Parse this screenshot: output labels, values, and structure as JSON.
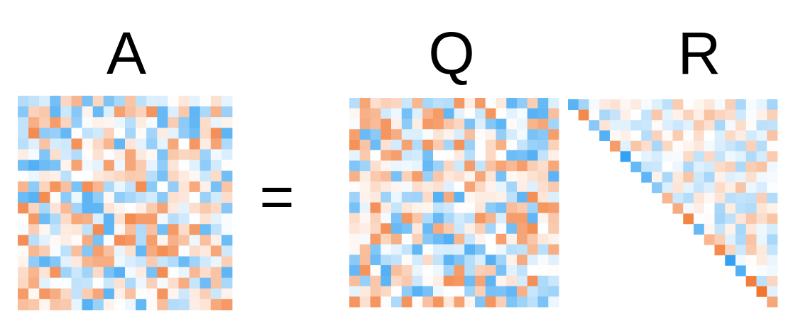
{
  "labels": {
    "a": "A",
    "equals": "=",
    "q": "Q",
    "r": "R"
  },
  "colors": {
    "negative": "#1a96f0",
    "positive": "#f06414",
    "neutral": "#ffffff"
  },
  "matrices": {
    "a": {
      "rows": 20,
      "cols": 20,
      "structure": "dense",
      "seed": 11
    },
    "q": {
      "rows": 20,
      "cols": 20,
      "structure": "dense",
      "seed": 29
    },
    "r": {
      "rows": 20,
      "cols": 20,
      "structure": "upper-triangular",
      "seed": 47
    }
  }
}
